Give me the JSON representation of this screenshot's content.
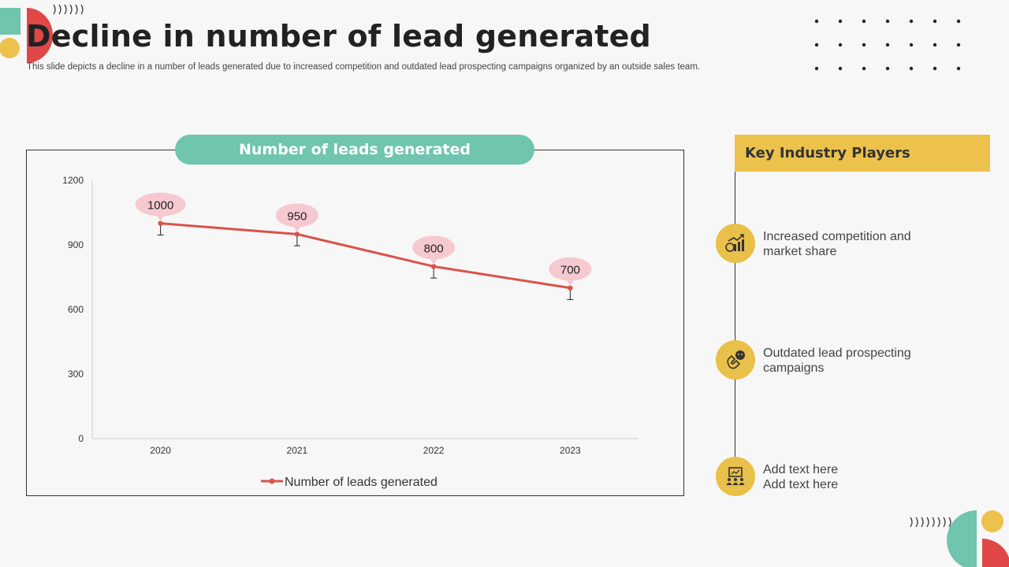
{
  "slide": {
    "title": "Decline in number of lead generated",
    "subtitle": "This slide depicts a decline in a number of leads generated due to increased competition and outdated lead prospecting campaigns organized by an outside sales team."
  },
  "chart_data": {
    "type": "line",
    "title": "Number of leads generated",
    "categories": [
      "2020",
      "2021",
      "2022",
      "2023"
    ],
    "series": [
      {
        "name": "Number of leads generated",
        "values": [
          1000,
          950,
          800,
          700
        ],
        "color": "#d9534a"
      }
    ],
    "data_labels": [
      "1000",
      "950",
      "800",
      "700"
    ],
    "ylim": [
      0,
      1200
    ],
    "yticks": [
      0,
      300,
      600,
      900,
      1200
    ],
    "xlabel": "",
    "ylabel": "",
    "legend": "bottom",
    "grid": false,
    "error_bars": true
  },
  "panel": {
    "header": "Key Industry Players",
    "items": [
      {
        "icon": "money-growth-icon",
        "lines": [
          "Increased competition and",
          "market share"
        ]
      },
      {
        "icon": "magnet-people-icon",
        "lines": [
          "Outdated lead prospecting",
          "campaigns"
        ]
      },
      {
        "icon": "presentation-team-icon",
        "lines": [
          "Add text here",
          "Add text here"
        ]
      }
    ]
  },
  "colors": {
    "accent_teal": "#6fc5ad",
    "accent_yellow": "#ecc24c",
    "accent_red": "#e04848",
    "label_bubble": "#f6c9d0"
  }
}
